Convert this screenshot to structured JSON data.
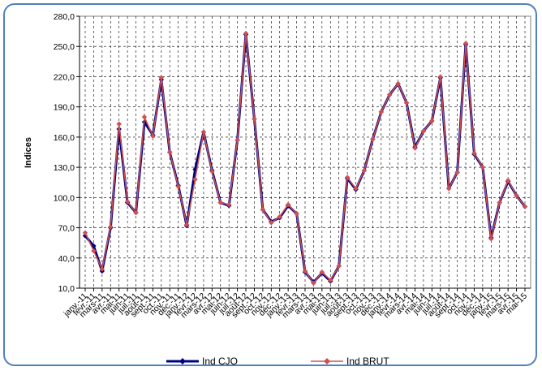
{
  "chart_data": {
    "type": "line",
    "title": "",
    "xlabel": "",
    "ylabel": "Indices",
    "ylim": [
      10,
      280
    ],
    "yticks": [
      10,
      40,
      70,
      100,
      130,
      160,
      190,
      220,
      250,
      280
    ],
    "ytick_labels": [
      "10,0",
      "40,0",
      "70,0",
      "100,0",
      "130,0",
      "160,0",
      "190,0",
      "220,0",
      "250,0",
      "280,0"
    ],
    "grid": "dashed-both",
    "legend_position": "bottom",
    "categories": [
      "janv.-11",
      "févr.-11",
      "mars-11",
      "avr.-11",
      "mai-11",
      "juin-11",
      "juil.-11",
      "août-11",
      "sept.-11",
      "oct.-11",
      "nov.-11",
      "déc.-11",
      "janv.-12",
      "févr.-12",
      "mars-12",
      "avr.-12",
      "mai-12",
      "juin-12",
      "juil.-12",
      "août-12",
      "sept.-12",
      "oct.-12",
      "nov.-12",
      "déc.-12",
      "janv.-13",
      "févr.-13",
      "mars-13",
      "avr.-13",
      "mai-13",
      "juin-13",
      "juil.-13",
      "août-13",
      "sept.-13",
      "oct.-13",
      "nov.-13",
      "déc.-13",
      "janv.-14",
      "févr.-14",
      "mars-14",
      "avr.-14",
      "mai-14",
      "juin-14",
      "juil.-14",
      "août-14",
      "sept.-14",
      "oct.-14",
      "nov.-14",
      "déc.-14",
      "janv.-15",
      "févr.-15",
      "mars-15",
      "avr.-15",
      "mai-15"
    ],
    "series": [
      {
        "name": "Ind CJO",
        "color": "#000080",
        "values": [
          62,
          52,
          27,
          70,
          168,
          95,
          85,
          175,
          162,
          217,
          145,
          112,
          72,
          128,
          165,
          127,
          95,
          92,
          157,
          262,
          178,
          88,
          76,
          80,
          92,
          84,
          26,
          16,
          25,
          17,
          32,
          119,
          108,
          127,
          158,
          185,
          202,
          213,
          194,
          150,
          166,
          176,
          219,
          109,
          125,
          252,
          143,
          130,
          60,
          95,
          116,
          102,
          91
        ]
      },
      {
        "name": "Ind BRUT",
        "color": "#d05050",
        "values": [
          65,
          47,
          29,
          71,
          173,
          96,
          85,
          180,
          161,
          219,
          145,
          111,
          73,
          118,
          165,
          126,
          95,
          93,
          157,
          263,
          178,
          88,
          75,
          81,
          93,
          84,
          27,
          15,
          26,
          18,
          32,
          120,
          109,
          127,
          158,
          185,
          202,
          213,
          194,
          149,
          166,
          176,
          220,
          109,
          125,
          253,
          144,
          130,
          59,
          95,
          117,
          102,
          91
        ]
      }
    ]
  }
}
